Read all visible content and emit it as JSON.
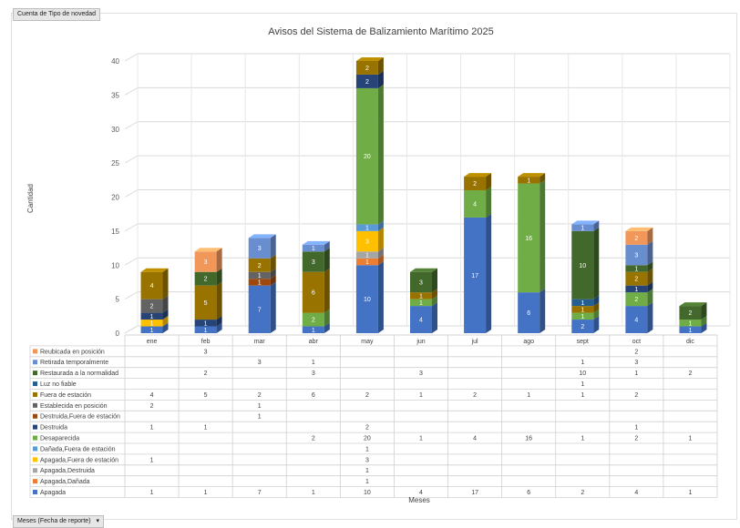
{
  "pivot_field_button": "Cuenta de Tipo de novedad",
  "axis_field_button": "Meses (Fecha de reporte)",
  "axis_field_dropdown_icon": "dropdown-arrow-icon",
  "chart_data": {
    "type": "bar",
    "stacked": true,
    "3d": true,
    "title": "Avisos del Sistema de Balizamiento Marítimo 2025",
    "xlabel": "Meses",
    "ylabel": "Cantidad",
    "ylim": [
      0,
      40
    ],
    "yticks": [
      0,
      5,
      10,
      15,
      20,
      25,
      30,
      35,
      40
    ],
    "grid": true,
    "legend_placement": "data-table-left",
    "categories": [
      "ene",
      "feb",
      "mar",
      "abr",
      "may",
      "jun",
      "jul",
      "ago",
      "sept",
      "oct",
      "dic"
    ],
    "series": [
      {
        "name": "Apagada",
        "color": "#4472c4",
        "values": [
          1,
          1,
          7,
          1,
          10,
          4,
          17,
          6,
          2,
          4,
          1
        ]
      },
      {
        "name": "Apagada,Dañada",
        "color": "#ed7d31",
        "values": [
          null,
          null,
          null,
          null,
          1,
          null,
          null,
          null,
          null,
          null,
          null
        ]
      },
      {
        "name": "Apagada,Destruida",
        "color": "#a5a5a5",
        "values": [
          null,
          null,
          null,
          null,
          1,
          null,
          null,
          null,
          null,
          null,
          null
        ]
      },
      {
        "name": "Apagada,Fuera de estación",
        "color": "#ffc000",
        "values": [
          1,
          null,
          null,
          null,
          3,
          null,
          null,
          null,
          null,
          null,
          null
        ]
      },
      {
        "name": "Dañada,Fuera de estación",
        "color": "#5b9bd5",
        "values": [
          null,
          null,
          null,
          null,
          1,
          null,
          null,
          null,
          null,
          null,
          null
        ]
      },
      {
        "name": "Desaparecida",
        "color": "#70ad47",
        "values": [
          null,
          null,
          null,
          2,
          20,
          1,
          4,
          16,
          1,
          2,
          1
        ]
      },
      {
        "name": "Destruida",
        "color": "#264478",
        "values": [
          1,
          1,
          null,
          null,
          2,
          null,
          null,
          null,
          null,
          1,
          null
        ]
      },
      {
        "name": "Destruida,Fuera de estación",
        "color": "#9e480e",
        "values": [
          null,
          null,
          1,
          null,
          null,
          null,
          null,
          null,
          null,
          null,
          null
        ]
      },
      {
        "name": "Establecida en posición",
        "color": "#636363",
        "values": [
          2,
          null,
          1,
          null,
          null,
          null,
          null,
          null,
          null,
          null,
          null
        ]
      },
      {
        "name": "Fuera de estación",
        "color": "#997300",
        "values": [
          4,
          5,
          2,
          6,
          2,
          1,
          2,
          1,
          1,
          2,
          null
        ]
      },
      {
        "name": "Luz no fiable",
        "color": "#255e91",
        "values": [
          null,
          null,
          null,
          null,
          null,
          null,
          null,
          null,
          1,
          null,
          null
        ]
      },
      {
        "name": "Restaurada a la normalidad",
        "color": "#43682b",
        "values": [
          null,
          2,
          null,
          3,
          null,
          3,
          null,
          null,
          10,
          1,
          2
        ]
      },
      {
        "name": "Retirada temporalmente",
        "color": "#698ed0",
        "values": [
          null,
          null,
          3,
          1,
          null,
          null,
          null,
          null,
          1,
          3,
          null
        ]
      },
      {
        "name": "Reubicada en posición",
        "color": "#f1975a",
        "values": [
          null,
          3,
          null,
          null,
          null,
          null,
          null,
          null,
          null,
          2,
          null
        ]
      }
    ]
  }
}
